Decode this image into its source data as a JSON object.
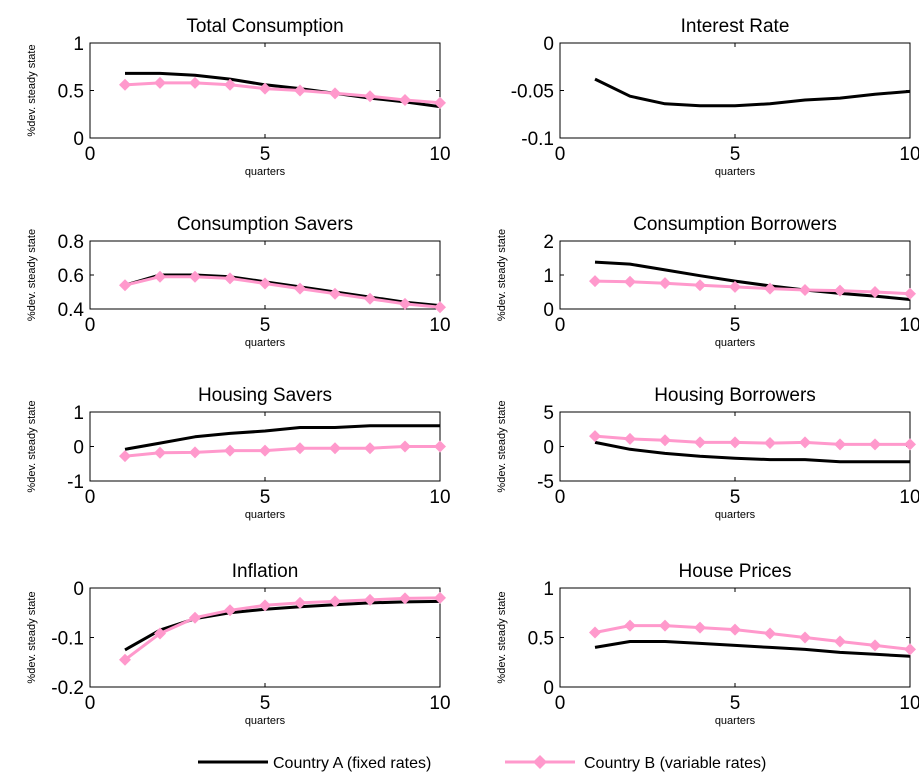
{
  "colors": {
    "series_a": "#000000",
    "series_b": "#ff99cc"
  },
  "legend": {
    "placement": "bottom-center",
    "items": [
      "Country A (fixed rates)",
      "Country B (variable rates)"
    ]
  },
  "chart_data": [
    {
      "type": "line",
      "title": "Total Consumption",
      "xlabel": "quarters",
      "ylabel": "%dev. steady state",
      "xlim": [
        0,
        10
      ],
      "ylim": [
        0,
        1
      ],
      "xticks": [
        0,
        5,
        10
      ],
      "xtick_labels": [
        "0",
        "5",
        "10"
      ],
      "yticks": [
        0,
        0.5,
        1
      ],
      "ytick_labels": [
        "0",
        "0.5",
        "1"
      ],
      "x": [
        1,
        2,
        3,
        4,
        5,
        6,
        7,
        8,
        9,
        10
      ],
      "series": [
        {
          "name": "Country A (fixed rates)",
          "values": [
            0.68,
            0.68,
            0.66,
            0.62,
            0.56,
            0.52,
            0.47,
            0.42,
            0.38,
            0.33
          ]
        },
        {
          "name": "Country B (variable rates)",
          "values": [
            0.56,
            0.58,
            0.58,
            0.56,
            0.52,
            0.5,
            0.47,
            0.44,
            0.4,
            0.37
          ]
        }
      ]
    },
    {
      "type": "line",
      "title": "Interest Rate",
      "xlabel": "quarters",
      "ylabel": "",
      "xlim": [
        0,
        10
      ],
      "ylim": [
        -0.1,
        0
      ],
      "xticks": [
        0,
        5,
        10
      ],
      "xtick_labels": [
        "0",
        "5",
        "10"
      ],
      "yticks": [
        -0.1,
        -0.05,
        0
      ],
      "ytick_labels": [
        "-0.1",
        "-0.05",
        "0"
      ],
      "x": [
        1,
        2,
        3,
        4,
        5,
        6,
        7,
        8,
        9,
        10
      ],
      "series": [
        {
          "name": "Country A (fixed rates)",
          "values": [
            -0.038,
            -0.056,
            -0.064,
            -0.066,
            -0.066,
            -0.064,
            -0.06,
            -0.058,
            -0.054,
            -0.051
          ]
        }
      ]
    },
    {
      "type": "line",
      "title": "Consumption Savers",
      "xlabel": "quarters",
      "ylabel": "%dev. steady state",
      "xlim": [
        0,
        10
      ],
      "ylim": [
        0.4,
        0.8
      ],
      "xticks": [
        0,
        5,
        10
      ],
      "xtick_labels": [
        "0",
        "5",
        "10"
      ],
      "yticks": [
        0.4,
        0.6,
        0.8
      ],
      "ytick_labels": [
        "0.4",
        "0.6",
        "0.8"
      ],
      "x": [
        1,
        2,
        3,
        4,
        5,
        6,
        7,
        8,
        9,
        10
      ],
      "series": [
        {
          "name": "Country A (fixed rates)",
          "values": [
            0.54,
            0.6,
            0.6,
            0.59,
            0.56,
            0.53,
            0.5,
            0.47,
            0.44,
            0.42
          ]
        },
        {
          "name": "Country B (variable rates)",
          "values": [
            0.54,
            0.59,
            0.59,
            0.58,
            0.55,
            0.52,
            0.49,
            0.46,
            0.43,
            0.41
          ]
        }
      ]
    },
    {
      "type": "line",
      "title": "Consumption Borrowers",
      "xlabel": "quarters",
      "ylabel": "%dev. steady state",
      "xlim": [
        0,
        10
      ],
      "ylim": [
        0,
        2
      ],
      "xticks": [
        0,
        5,
        10
      ],
      "xtick_labels": [
        "0",
        "5",
        "10"
      ],
      "yticks": [
        0,
        1,
        2
      ],
      "ytick_labels": [
        "0",
        "1",
        "2"
      ],
      "x": [
        1,
        2,
        3,
        4,
        5,
        6,
        7,
        8,
        9,
        10
      ],
      "series": [
        {
          "name": "Country A (fixed rates)",
          "values": [
            1.38,
            1.32,
            1.15,
            0.98,
            0.82,
            0.68,
            0.56,
            0.46,
            0.38,
            0.28
          ]
        },
        {
          "name": "Country B (variable rates)",
          "values": [
            0.82,
            0.8,
            0.76,
            0.7,
            0.65,
            0.6,
            0.56,
            0.54,
            0.5,
            0.45
          ]
        }
      ]
    },
    {
      "type": "line",
      "title": "Housing Savers",
      "xlabel": "quarters",
      "ylabel": "%dev. steady state",
      "xlim": [
        0,
        10
      ],
      "ylim": [
        -1,
        1
      ],
      "xticks": [
        0,
        5,
        10
      ],
      "xtick_labels": [
        "0",
        "5",
        "10"
      ],
      "yticks": [
        -1,
        0,
        1
      ],
      "ytick_labels": [
        "-1",
        "0",
        "1"
      ],
      "x": [
        1,
        2,
        3,
        4,
        5,
        6,
        7,
        8,
        9,
        10
      ],
      "series": [
        {
          "name": "Country A (fixed rates)",
          "values": [
            -0.08,
            0.1,
            0.28,
            0.38,
            0.45,
            0.55,
            0.55,
            0.6,
            0.6,
            0.6
          ]
        },
        {
          "name": "Country B (variable rates)",
          "values": [
            -0.28,
            -0.18,
            -0.17,
            -0.12,
            -0.12,
            -0.05,
            -0.05,
            -0.05,
            0.0,
            0.0
          ]
        }
      ]
    },
    {
      "type": "line",
      "title": "Housing Borrowers",
      "xlabel": "quarters",
      "ylabel": "%dev. steady state",
      "xlim": [
        0,
        10
      ],
      "ylim": [
        -5,
        5
      ],
      "xticks": [
        0,
        5,
        10
      ],
      "xtick_labels": [
        "0",
        "5",
        "10"
      ],
      "yticks": [
        -5,
        0,
        5
      ],
      "ytick_labels": [
        "-5",
        "0",
        "5"
      ],
      "x": [
        1,
        2,
        3,
        4,
        5,
        6,
        7,
        8,
        9,
        10
      ],
      "series": [
        {
          "name": "Country A (fixed rates)",
          "values": [
            0.6,
            -0.4,
            -1.0,
            -1.4,
            -1.7,
            -1.9,
            -1.9,
            -2.2,
            -2.2,
            -2.2
          ]
        },
        {
          "name": "Country B (variable rates)",
          "values": [
            1.5,
            1.1,
            0.9,
            0.6,
            0.6,
            0.5,
            0.6,
            0.3,
            0.3,
            0.3
          ]
        }
      ]
    },
    {
      "type": "line",
      "title": "Inflation",
      "xlabel": "quarters",
      "ylabel": "%dev. steady state",
      "xlim": [
        0,
        10
      ],
      "ylim": [
        -0.2,
        0
      ],
      "xticks": [
        0,
        5,
        10
      ],
      "xtick_labels": [
        "0",
        "5",
        "10"
      ],
      "yticks": [
        -0.2,
        -0.1,
        0
      ],
      "ytick_labels": [
        "-0.2",
        "-0.1",
        "0"
      ],
      "x": [
        1,
        2,
        3,
        4,
        5,
        6,
        7,
        8,
        9,
        10
      ],
      "series": [
        {
          "name": "Country A (fixed rates)",
          "values": [
            -0.125,
            -0.085,
            -0.062,
            -0.05,
            -0.043,
            -0.038,
            -0.034,
            -0.03,
            -0.028,
            -0.027
          ]
        },
        {
          "name": "Country B (variable rates)",
          "values": [
            -0.145,
            -0.092,
            -0.06,
            -0.045,
            -0.035,
            -0.03,
            -0.027,
            -0.024,
            -0.021,
            -0.02
          ]
        }
      ]
    },
    {
      "type": "line",
      "title": "House Prices",
      "xlabel": "quarters",
      "ylabel": "%dev. steady state",
      "xlim": [
        0,
        10
      ],
      "ylim": [
        0,
        1
      ],
      "xticks": [
        0,
        5,
        10
      ],
      "xtick_labels": [
        "0",
        "5",
        "10"
      ],
      "yticks": [
        0,
        0.5,
        1
      ],
      "ytick_labels": [
        "0",
        "0.5",
        "1"
      ],
      "x": [
        1,
        2,
        3,
        4,
        5,
        6,
        7,
        8,
        9,
        10
      ],
      "series": [
        {
          "name": "Country A (fixed rates)",
          "values": [
            0.4,
            0.46,
            0.46,
            0.44,
            0.42,
            0.4,
            0.38,
            0.35,
            0.33,
            0.31
          ]
        },
        {
          "name": "Country B (variable rates)",
          "values": [
            0.55,
            0.62,
            0.62,
            0.6,
            0.58,
            0.54,
            0.5,
            0.46,
            0.42,
            0.38
          ]
        }
      ]
    }
  ]
}
